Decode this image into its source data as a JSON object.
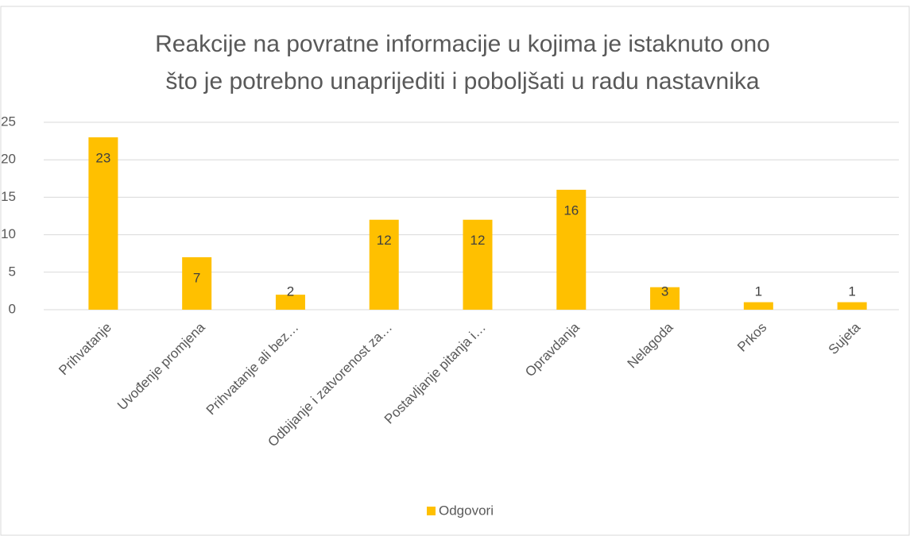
{
  "chart_data": {
    "type": "bar",
    "title": [
      "Reakcije na povratne informacije u kojima je istaknuto ono",
      "što je potrebno unaprijediti i poboljšati u radu nastavnika"
    ],
    "categories": [
      "Prihvatanje",
      "Uvođenje promjena",
      "Prihvatanje ali bez…",
      "Odbijanje i zatvorenost za…",
      "Postavljanje pitanja i…",
      "Opravdanja",
      "Nelagoda",
      "Prkos",
      "Sujeta"
    ],
    "series": [
      {
        "name": "Odgovori",
        "color": "#ffc000",
        "values": [
          23,
          7,
          2,
          12,
          12,
          16,
          3,
          1,
          1
        ]
      }
    ],
    "ylim": [
      0,
      25
    ],
    "yticks": [
      0,
      5,
      10,
      15,
      20,
      25
    ],
    "grid": true,
    "legend": "bottom"
  }
}
